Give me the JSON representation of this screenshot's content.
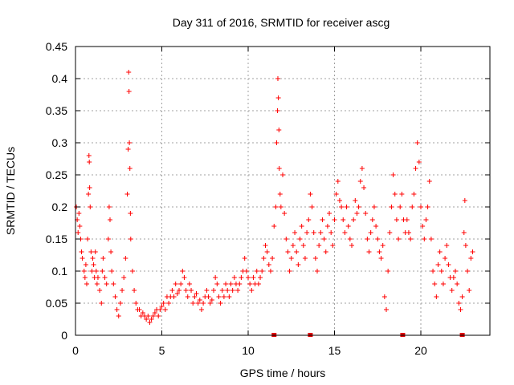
{
  "chart_data": {
    "type": "scatter",
    "title": "Day 311 of 2016, SRMTID for receiver ascg",
    "xlabel": "GPS time / hours",
    "ylabel": "SRMTID / TECUs",
    "xlim": [
      0,
      24
    ],
    "ylim": [
      0,
      0.45
    ],
    "xticks": [
      0,
      5,
      10,
      15,
      20
    ],
    "yticks": [
      0,
      0.05,
      0.1,
      0.15,
      0.2,
      0.25,
      0.3,
      0.35,
      0.4,
      0.45
    ],
    "grid": true,
    "marker": "+",
    "color": "#ff0000",
    "series": [
      {
        "name": "SRMTID",
        "points": [
          [
            0.05,
            0.2
          ],
          [
            0.1,
            0.18
          ],
          [
            0.15,
            0.16
          ],
          [
            0.2,
            0.19
          ],
          [
            0.25,
            0.17
          ],
          [
            0.3,
            0.15
          ],
          [
            0.35,
            0.13
          ],
          [
            0.4,
            0.12
          ],
          [
            0.5,
            0.1
          ],
          [
            0.55,
            0.09
          ],
          [
            0.6,
            0.11
          ],
          [
            0.65,
            0.08
          ],
          [
            0.7,
            0.15
          ],
          [
            0.75,
            0.22
          ],
          [
            0.78,
            0.28
          ],
          [
            0.8,
            0.27
          ],
          [
            0.82,
            0.23
          ],
          [
            0.85,
            0.2
          ],
          [
            0.9,
            0.13
          ],
          [
            0.95,
            0.1
          ],
          [
            1.0,
            0.12
          ],
          [
            1.05,
            0.11
          ],
          [
            1.1,
            0.09
          ],
          [
            1.15,
            0.13
          ],
          [
            1.2,
            0.1
          ],
          [
            1.25,
            0.08
          ],
          [
            1.3,
            0.09
          ],
          [
            1.4,
            0.07
          ],
          [
            1.5,
            0.05
          ],
          [
            1.55,
            0.1
          ],
          [
            1.6,
            0.12
          ],
          [
            1.7,
            0.09
          ],
          [
            1.8,
            0.08
          ],
          [
            1.9,
            0.15
          ],
          [
            1.95,
            0.2
          ],
          [
            2.0,
            0.18
          ],
          [
            2.05,
            0.13
          ],
          [
            2.1,
            0.1
          ],
          [
            2.2,
            0.08
          ],
          [
            2.3,
            0.06
          ],
          [
            2.4,
            0.04
          ],
          [
            2.5,
            0.03
          ],
          [
            2.6,
            0.05
          ],
          [
            2.7,
            0.07
          ],
          [
            2.8,
            0.09
          ],
          [
            2.9,
            0.12
          ],
          [
            3.0,
            0.22
          ],
          [
            3.05,
            0.29
          ],
          [
            3.08,
            0.41
          ],
          [
            3.1,
            0.38
          ],
          [
            3.12,
            0.3
          ],
          [
            3.15,
            0.26
          ],
          [
            3.18,
            0.19
          ],
          [
            3.2,
            0.15
          ],
          [
            3.3,
            0.1
          ],
          [
            3.4,
            0.07
          ],
          [
            3.5,
            0.05
          ],
          [
            3.6,
            0.04
          ],
          [
            3.7,
            0.04
          ],
          [
            3.8,
            0.03
          ],
          [
            3.9,
            0.035
          ],
          [
            4.0,
            0.03
          ],
          [
            4.1,
            0.025
          ],
          [
            4.2,
            0.03
          ],
          [
            4.3,
            0.02
          ],
          [
            4.4,
            0.025
          ],
          [
            4.5,
            0.03
          ],
          [
            4.6,
            0.035
          ],
          [
            4.7,
            0.04
          ],
          [
            4.8,
            0.03
          ],
          [
            4.9,
            0.04
          ],
          [
            5.0,
            0.045
          ],
          [
            5.1,
            0.05
          ],
          [
            5.2,
            0.04
          ],
          [
            5.3,
            0.06
          ],
          [
            5.4,
            0.05
          ],
          [
            5.5,
            0.06
          ],
          [
            5.6,
            0.07
          ],
          [
            5.7,
            0.06
          ],
          [
            5.8,
            0.08
          ],
          [
            5.9,
            0.065
          ],
          [
            6.0,
            0.07
          ],
          [
            6.1,
            0.08
          ],
          [
            6.2,
            0.1
          ],
          [
            6.3,
            0.09
          ],
          [
            6.4,
            0.07
          ],
          [
            6.5,
            0.06
          ],
          [
            6.6,
            0.08
          ],
          [
            6.7,
            0.07
          ],
          [
            6.8,
            0.05
          ],
          [
            6.9,
            0.06
          ],
          [
            7.0,
            0.065
          ],
          [
            7.1,
            0.05
          ],
          [
            7.2,
            0.055
          ],
          [
            7.3,
            0.04
          ],
          [
            7.4,
            0.05
          ],
          [
            7.5,
            0.06
          ],
          [
            7.6,
            0.07
          ],
          [
            7.7,
            0.06
          ],
          [
            7.8,
            0.05
          ],
          [
            7.9,
            0.055
          ],
          [
            8.0,
            0.07
          ],
          [
            8.1,
            0.09
          ],
          [
            8.2,
            0.08
          ],
          [
            8.3,
            0.06
          ],
          [
            8.4,
            0.05
          ],
          [
            8.5,
            0.07
          ],
          [
            8.6,
            0.06
          ],
          [
            8.7,
            0.08
          ],
          [
            8.8,
            0.07
          ],
          [
            8.9,
            0.06
          ],
          [
            9.0,
            0.08
          ],
          [
            9.1,
            0.07
          ],
          [
            9.2,
            0.09
          ],
          [
            9.3,
            0.08
          ],
          [
            9.4,
            0.07
          ],
          [
            9.5,
            0.08
          ],
          [
            9.6,
            0.09
          ],
          [
            9.7,
            0.1
          ],
          [
            9.8,
            0.12
          ],
          [
            9.9,
            0.1
          ],
          [
            10.0,
            0.09
          ],
          [
            10.1,
            0.08
          ],
          [
            10.2,
            0.07
          ],
          [
            10.3,
            0.09
          ],
          [
            10.4,
            0.08
          ],
          [
            10.5,
            0.1
          ],
          [
            10.6,
            0.08
          ],
          [
            10.7,
            0.09
          ],
          [
            10.8,
            0.1
          ],
          [
            10.9,
            0.12
          ],
          [
            11.0,
            0.14
          ],
          [
            11.1,
            0.13
          ],
          [
            11.2,
            0.11
          ],
          [
            11.3,
            0.1
          ],
          [
            11.4,
            0.12
          ],
          [
            11.5,
            0.17
          ],
          [
            11.6,
            0.2
          ],
          [
            11.65,
            0.3
          ],
          [
            11.7,
            0.35
          ],
          [
            11.72,
            0.4
          ],
          [
            11.75,
            0.37
          ],
          [
            11.78,
            0.32
          ],
          [
            11.8,
            0.26
          ],
          [
            11.85,
            0.22
          ],
          [
            11.9,
            0.2
          ],
          [
            12.0,
            0.25
          ],
          [
            12.1,
            0.19
          ],
          [
            12.2,
            0.15
          ],
          [
            12.3,
            0.13
          ],
          [
            12.4,
            0.1
          ],
          [
            12.5,
            0.12
          ],
          [
            12.6,
            0.14
          ],
          [
            12.7,
            0.16
          ],
          [
            12.8,
            0.13
          ],
          [
            12.9,
            0.11
          ],
          [
            13.0,
            0.15
          ],
          [
            13.1,
            0.17
          ],
          [
            13.2,
            0.14
          ],
          [
            13.3,
            0.12
          ],
          [
            13.4,
            0.16
          ],
          [
            13.5,
            0.18
          ],
          [
            13.6,
            0.22
          ],
          [
            13.7,
            0.2
          ],
          [
            13.8,
            0.16
          ],
          [
            13.9,
            0.12
          ],
          [
            14.0,
            0.1
          ],
          [
            14.1,
            0.14
          ],
          [
            14.2,
            0.16
          ],
          [
            14.3,
            0.18
          ],
          [
            14.4,
            0.15
          ],
          [
            14.5,
            0.13
          ],
          [
            14.6,
            0.17
          ],
          [
            14.7,
            0.19
          ],
          [
            14.8,
            0.16
          ],
          [
            14.9,
            0.14
          ],
          [
            15.0,
            0.18
          ],
          [
            15.1,
            0.22
          ],
          [
            15.2,
            0.24
          ],
          [
            15.3,
            0.21
          ],
          [
            15.4,
            0.2
          ],
          [
            15.5,
            0.18
          ],
          [
            15.6,
            0.16
          ],
          [
            15.7,
            0.2
          ],
          [
            15.8,
            0.17
          ],
          [
            15.9,
            0.15
          ],
          [
            16.0,
            0.14
          ],
          [
            16.1,
            0.18
          ],
          [
            16.2,
            0.21
          ],
          [
            16.3,
            0.19
          ],
          [
            16.4,
            0.2
          ],
          [
            16.5,
            0.24
          ],
          [
            16.6,
            0.26
          ],
          [
            16.7,
            0.23
          ],
          [
            16.8,
            0.19
          ],
          [
            16.9,
            0.15
          ],
          [
            17.0,
            0.13
          ],
          [
            17.1,
            0.16
          ],
          [
            17.2,
            0.18
          ],
          [
            17.3,
            0.2
          ],
          [
            17.4,
            0.17
          ],
          [
            17.5,
            0.15
          ],
          [
            17.6,
            0.13
          ],
          [
            17.7,
            0.12
          ],
          [
            17.8,
            0.14
          ],
          [
            17.9,
            0.06
          ],
          [
            18.0,
            0.04
          ],
          [
            18.1,
            0.1
          ],
          [
            18.2,
            0.16
          ],
          [
            18.3,
            0.2
          ],
          [
            18.4,
            0.25
          ],
          [
            18.5,
            0.22
          ],
          [
            18.6,
            0.18
          ],
          [
            18.7,
            0.15
          ],
          [
            18.8,
            0.2
          ],
          [
            18.9,
            0.22
          ],
          [
            19.0,
            0.18
          ],
          [
            19.1,
            0.16
          ],
          [
            19.2,
            0.18
          ],
          [
            19.3,
            0.16
          ],
          [
            19.4,
            0.15
          ],
          [
            19.5,
            0.2
          ],
          [
            19.6,
            0.22
          ],
          [
            19.7,
            0.26
          ],
          [
            19.8,
            0.3
          ],
          [
            19.9,
            0.27
          ],
          [
            20.0,
            0.2
          ],
          [
            20.1,
            0.17
          ],
          [
            20.2,
            0.15
          ],
          [
            20.3,
            0.18
          ],
          [
            20.4,
            0.2
          ],
          [
            20.5,
            0.24
          ],
          [
            20.6,
            0.15
          ],
          [
            20.7,
            0.1
          ],
          [
            20.8,
            0.08
          ],
          [
            20.9,
            0.06
          ],
          [
            21.0,
            0.11
          ],
          [
            21.1,
            0.13
          ],
          [
            21.2,
            0.1
          ],
          [
            21.3,
            0.08
          ],
          [
            21.4,
            0.12
          ],
          [
            21.5,
            0.14
          ],
          [
            21.6,
            0.11
          ],
          [
            21.7,
            0.09
          ],
          [
            21.8,
            0.07
          ],
          [
            21.9,
            0.09
          ],
          [
            22.0,
            0.1
          ],
          [
            22.1,
            0.08
          ],
          [
            22.2,
            0.05
          ],
          [
            22.3,
            0.04
          ],
          [
            22.4,
            0.06
          ],
          [
            22.5,
            0.16
          ],
          [
            22.55,
            0.21
          ],
          [
            22.6,
            0.14
          ],
          [
            22.7,
            0.1
          ],
          [
            22.8,
            0.07
          ],
          [
            22.9,
            0.12
          ],
          [
            23.0,
            0.13
          ]
        ]
      }
    ],
    "markers": [
      11.5,
      13.6,
      18.95,
      22.4
    ]
  }
}
